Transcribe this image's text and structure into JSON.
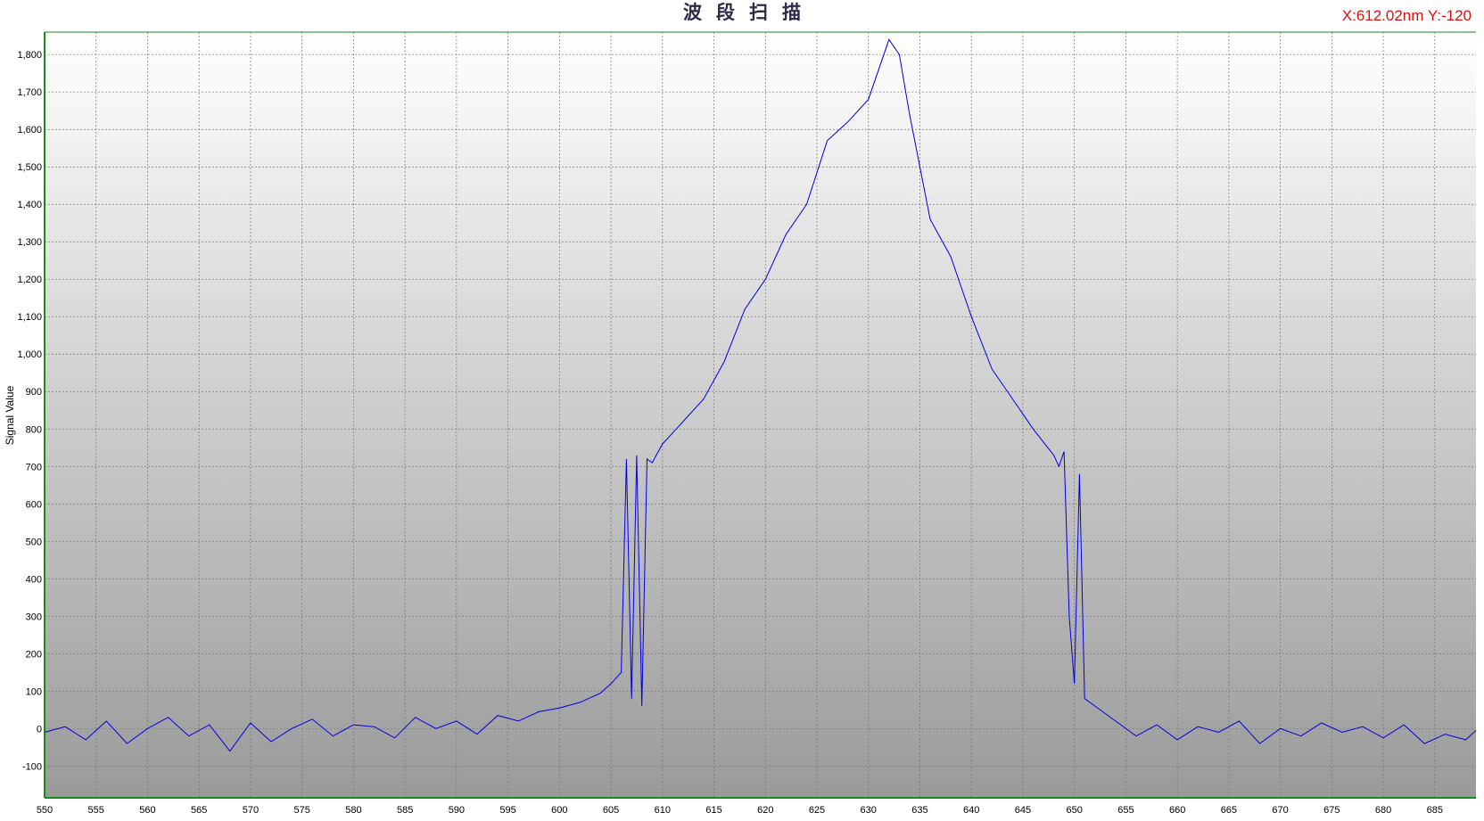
{
  "chart_data": {
    "type": "line",
    "title": "波段扫描",
    "xlabel": "",
    "ylabel": "Signal Value",
    "xlim": [
      550,
      689
    ],
    "ylim": [
      -185,
      1860
    ],
    "x_ticks": [
      550,
      555,
      560,
      565,
      570,
      575,
      580,
      585,
      590,
      595,
      600,
      605,
      610,
      615,
      620,
      625,
      630,
      635,
      640,
      645,
      650,
      655,
      660,
      665,
      670,
      675,
      680,
      685
    ],
    "y_ticks": [
      -100,
      0,
      100,
      200,
      300,
      400,
      500,
      600,
      700,
      800,
      900,
      1000,
      1100,
      1200,
      1300,
      1400,
      1500,
      1600,
      1700,
      1800
    ],
    "grid": true,
    "line_color": "#0000e0",
    "series": [
      {
        "x": [
          550,
          552,
          554,
          556,
          558,
          560,
          562,
          564,
          566,
          568,
          570,
          572,
          574,
          576,
          578,
          580,
          582,
          584,
          586,
          588,
          590,
          592,
          594,
          596,
          598,
          600,
          602,
          604,
          605,
          606,
          606.5,
          607,
          607.5,
          608,
          608.5,
          609,
          610,
          612,
          614,
          616,
          618,
          620,
          622,
          624,
          626,
          628,
          630,
          632,
          633,
          634,
          636,
          638,
          640,
          642,
          644,
          646,
          648,
          648.5,
          649,
          649.5,
          650,
          650.5,
          651,
          652,
          654,
          656,
          658,
          660,
          662,
          664,
          666,
          668,
          670,
          672,
          674,
          676,
          678,
          680,
          682,
          684,
          686,
          688,
          689
        ],
        "y": [
          -10,
          5,
          -30,
          20,
          -40,
          0,
          30,
          -20,
          10,
          -60,
          15,
          -35,
          0,
          25,
          -20,
          10,
          5,
          -25,
          30,
          0,
          20,
          -15,
          35,
          20,
          45,
          55,
          70,
          95,
          120,
          150,
          720,
          80,
          730,
          60,
          720,
          710,
          760,
          820,
          880,
          980,
          1120,
          1200,
          1320,
          1400,
          1570,
          1620,
          1680,
          1840,
          1800,
          1640,
          1360,
          1260,
          1100,
          960,
          880,
          800,
          730,
          700,
          740,
          300,
          120,
          680,
          80,
          60,
          20,
          -20,
          10,
          -30,
          5,
          -10,
          20,
          -40,
          0,
          -20,
          15,
          -10,
          5,
          -25,
          10,
          -40,
          -15,
          -30,
          -5
        ]
      }
    ]
  },
  "cursor_readout": "X:612.02nm  Y:-120"
}
